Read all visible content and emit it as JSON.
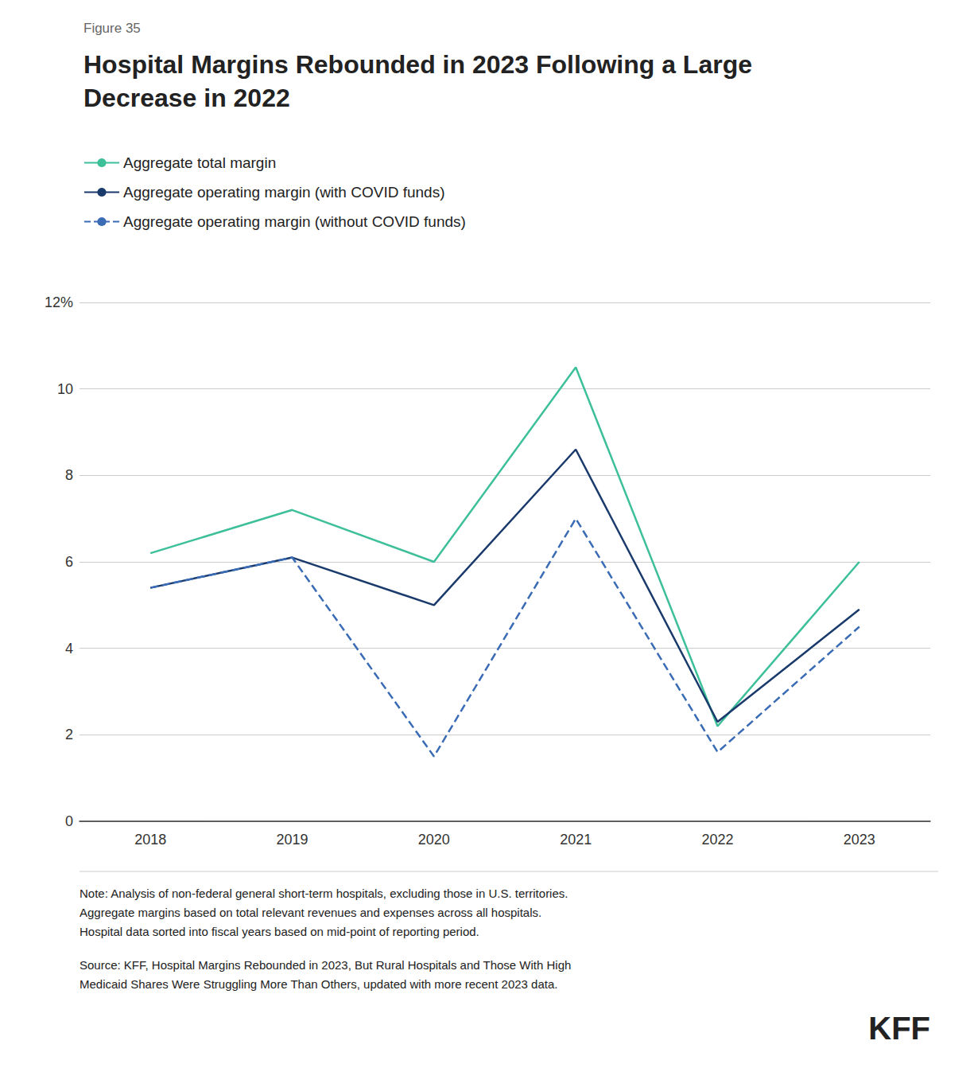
{
  "chart_data": {
    "type": "line",
    "subtitle": "Figure 35",
    "title": "Hospital Margins Rebounded in 2023 Following a Large\nDecrease in 2022",
    "categories": [
      "2018",
      "2019",
      "2020",
      "2021",
      "2022",
      "2023"
    ],
    "series": [
      {
        "name": "Aggregate total margin",
        "color": "#3dbf9a",
        "line_style": "solid",
        "values": [
          6.2,
          7.2,
          6.0,
          10.5,
          2.2,
          6.0
        ]
      },
      {
        "name": "Aggregate operating margin (with COVID funds)",
        "color": "#1a3a6b",
        "line_style": "solid",
        "values": [
          5.4,
          6.1,
          5.0,
          8.6,
          2.3,
          4.9
        ]
      },
      {
        "name": "Aggregate operating margin (without COVID funds)",
        "color": "#3a6bb5",
        "line_style": "dashed",
        "values": [
          5.4,
          6.1,
          1.5,
          7.0,
          1.6,
          4.5
        ]
      }
    ],
    "ylim": [
      0,
      12
    ],
    "yticks": [
      0,
      2,
      4,
      6,
      8,
      10,
      {
        "value": 12,
        "label": "12%"
      }
    ],
    "grid": true,
    "legend": "upper left",
    "marker": "none",
    "annotations": [
      "Note: Analysis of non-federal general short-term hospitals, excluding those in U.S. territories.\nAggregate margins based on total relevant revenues and expenses across all hospitals.\nHospital data sorted into fiscal years based on mid-point of reporting period.",
      "Source: KFF, Hospital Margins Rebounded in 2023, But Rural Hospitals and Those With High\nMedicaid Shares Were Struggling More Than Others, updated with more recent 2023 data.",
      "KFF"
    ]
  }
}
